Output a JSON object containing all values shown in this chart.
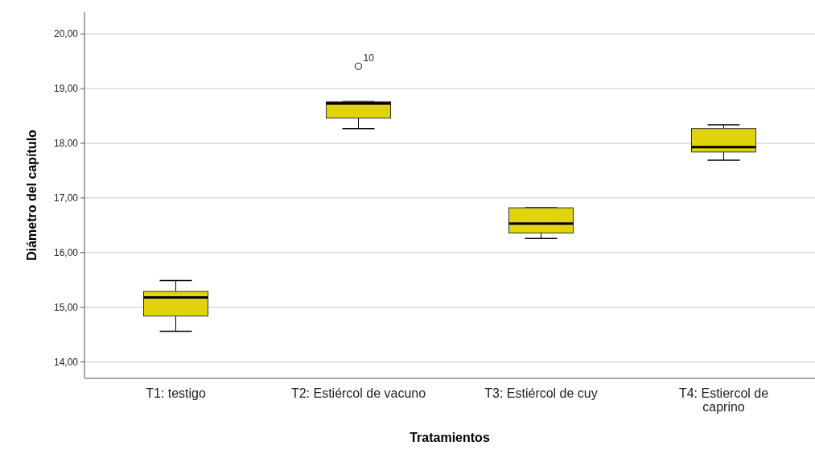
{
  "chart_data": {
    "type": "box",
    "xlabel": "Tratamientos",
    "ylabel": "Diámetro del capítulo",
    "categories": [
      "T1: testigo",
      "T2: Estiércol de vacuno",
      "T3: Estiércol de cuy",
      "T4: Estiercol de caprino"
    ],
    "boxes": [
      {
        "low": 14.56,
        "q1": 14.84,
        "median": 15.18,
        "q3": 15.29,
        "high": 15.49
      },
      {
        "low": 18.27,
        "q1": 18.46,
        "median": 18.73,
        "q3": 18.76,
        "high": 18.76,
        "outliers": [
          19.41
        ]
      },
      {
        "low": 16.26,
        "q1": 16.36,
        "median": 16.53,
        "q3": 16.82,
        "high": 16.82
      },
      {
        "low": 17.69,
        "q1": 17.84,
        "median": 17.93,
        "q3": 18.27,
        "high": 18.34
      }
    ],
    "color": "#e2d40c",
    "ylim": [
      13.7,
      20.4
    ],
    "yticks": [
      {
        "value": 14,
        "label": "14,00"
      },
      {
        "value": 15,
        "label": "15,00"
      },
      {
        "value": 16,
        "label": "16,00"
      },
      {
        "value": 17,
        "label": "17,00"
      },
      {
        "value": 18,
        "label": "18,00"
      },
      {
        "value": 19,
        "label": "19,00"
      },
      {
        "value": 20,
        "label": "20,00"
      }
    ],
    "grid": "y",
    "annotations": [
      "10"
    ]
  }
}
